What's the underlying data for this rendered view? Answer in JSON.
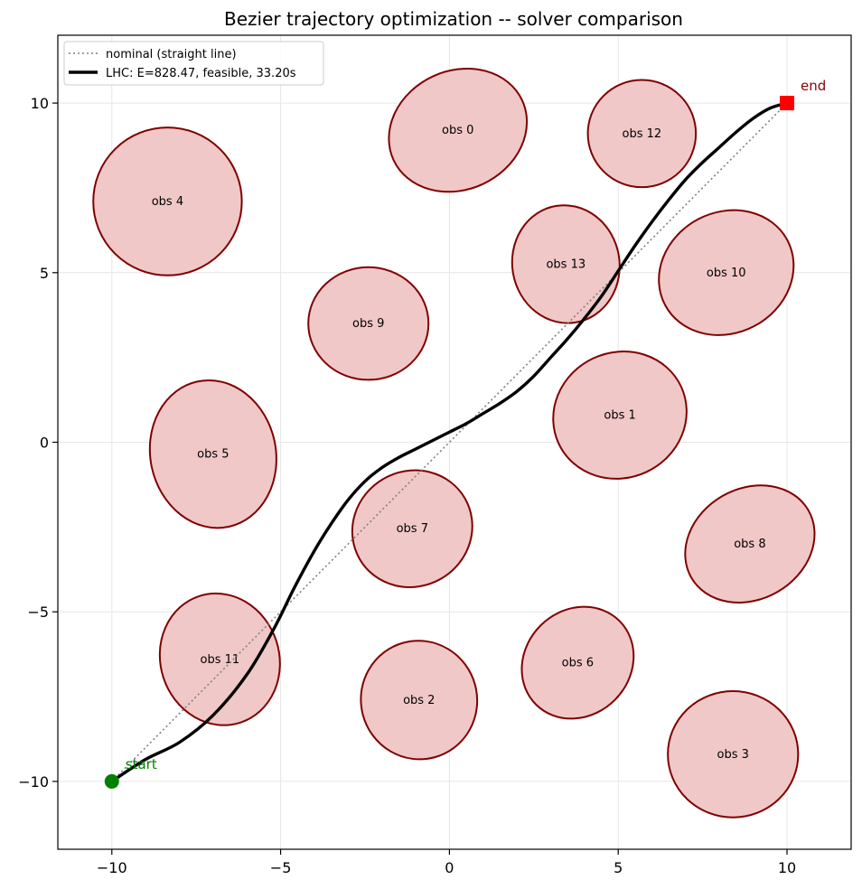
{
  "chart_data": {
    "type": "line",
    "title": "Bezier trajectory optimization -- solver comparison",
    "xlabel": "",
    "ylabel": "",
    "xlim": [
      -11.6,
      11.9
    ],
    "ylim": [
      -12.0,
      12.0
    ],
    "grid": true,
    "legend_position": "upper-left",
    "x_ticks": [
      -10,
      -5,
      0,
      5,
      10
    ],
    "y_ticks": [
      -10,
      -5,
      0,
      5,
      10
    ],
    "x_tick_labels": [
      "−10",
      "−5",
      "0",
      "5",
      "10"
    ],
    "y_tick_labels": [
      "−10",
      "−5",
      "0",
      "5",
      "10"
    ],
    "colors": {
      "obstacle_fill": "#f0c8c8",
      "obstacle_edge": "#800000",
      "trajectory": "#000000",
      "nominal": "#808080",
      "start": "#008000",
      "end": "#ff0000",
      "end_label": "#8b0000",
      "grid": "#e6e6e6"
    },
    "series": [
      {
        "name": "nominal (straight line)",
        "style": "dotted",
        "x": [
          -10,
          10
        ],
        "y": [
          -10,
          10
        ]
      },
      {
        "name": "LHC: E=828.47, feasible, 33.20s",
        "style": "solid",
        "x": [
          -10,
          -9.0,
          -8.0,
          -7.0,
          -6.0,
          -5.2,
          -4.6,
          -4.0,
          -3.5,
          -3.0,
          -2.5,
          -2.0,
          -1.5,
          -1.0,
          -0.5,
          0.0,
          0.5,
          1.0,
          1.5,
          2.0,
          2.5,
          3.0,
          3.5,
          4.0,
          4.5,
          5.0,
          5.5,
          6.0,
          6.5,
          7.0,
          7.5,
          8.0,
          8.5,
          9.0,
          9.5,
          10.0
        ],
        "y": [
          -10,
          -9.35,
          -8.85,
          -8.05,
          -6.85,
          -5.5,
          -4.3,
          -3.2,
          -2.4,
          -1.7,
          -1.15,
          -0.75,
          -0.45,
          -0.2,
          0.05,
          0.3,
          0.55,
          0.85,
          1.15,
          1.5,
          1.95,
          2.5,
          3.05,
          3.65,
          4.3,
          5.05,
          5.8,
          6.5,
          7.15,
          7.75,
          8.25,
          8.7,
          9.15,
          9.55,
          9.85,
          10.0
        ]
      }
    ],
    "points": [
      {
        "label": "start",
        "x": -10,
        "y": -10
      },
      {
        "label": "end",
        "x": 10,
        "y": 10
      }
    ],
    "obstacles": [
      {
        "label": "obs 0",
        "cx": 0.25,
        "cy": 9.2,
        "rx": 2.1,
        "ry": 1.75,
        "angle": -25
      },
      {
        "label": "obs 1",
        "cx": 5.05,
        "cy": 0.8,
        "rx": 2.0,
        "ry": 1.85,
        "angle": -25
      },
      {
        "label": "obs 2",
        "cx": -0.9,
        "cy": -7.6,
        "rx": 1.72,
        "ry": 1.75,
        "angle": -15
      },
      {
        "label": "obs 3",
        "cx": 8.4,
        "cy": -9.2,
        "rx": 1.93,
        "ry": 1.86,
        "angle": 0
      },
      {
        "label": "obs 4",
        "cx": -8.35,
        "cy": 7.1,
        "rx": 2.2,
        "ry": 2.18,
        "angle": 0
      },
      {
        "label": "obs 5",
        "cx": -7.0,
        "cy": -0.35,
        "rx": 2.2,
        "ry": 1.85,
        "angle": 78
      },
      {
        "label": "obs 6",
        "cx": 3.8,
        "cy": -6.5,
        "rx": 1.75,
        "ry": 1.55,
        "angle": -45
      },
      {
        "label": "obs 7",
        "cx": -1.1,
        "cy": -2.55,
        "rx": 1.8,
        "ry": 1.7,
        "angle": -30
      },
      {
        "label": "obs 8",
        "cx": 8.9,
        "cy": -3.0,
        "rx": 2.0,
        "ry": 1.63,
        "angle": -30
      },
      {
        "label": "obs 9",
        "cx": -2.4,
        "cy": 3.5,
        "rx": 1.78,
        "ry": 1.66,
        "angle": 0
      },
      {
        "label": "obs 10",
        "cx": 8.2,
        "cy": 5.0,
        "rx": 2.05,
        "ry": 1.78,
        "angle": -28
      },
      {
        "label": "obs 11",
        "cx": -6.8,
        "cy": -6.4,
        "rx": 1.97,
        "ry": 1.75,
        "angle": 72
      },
      {
        "label": "obs 12",
        "cx": 5.7,
        "cy": 9.1,
        "rx": 1.6,
        "ry": 1.58,
        "angle": 0
      },
      {
        "label": "obs 13",
        "cx": 3.45,
        "cy": 5.25,
        "rx": 1.75,
        "ry": 1.58,
        "angle": 80
      }
    ]
  }
}
